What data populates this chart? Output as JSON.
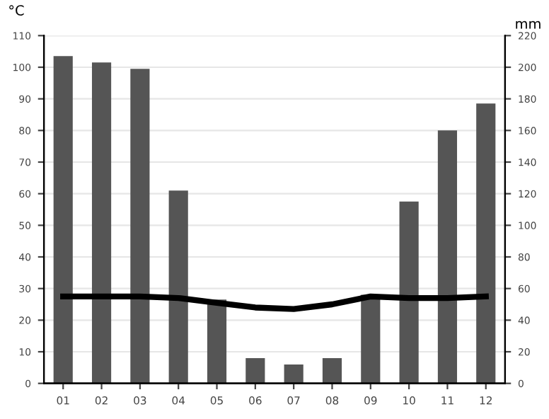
{
  "chart_data": {
    "type": "bar",
    "ylabel": "°C",
    "y2label": "mm",
    "categories": [
      "01",
      "02",
      "03",
      "04",
      "05",
      "06",
      "07",
      "08",
      "09",
      "10",
      "11",
      "12"
    ],
    "series": [
      {
        "axis": "y2",
        "color": "#555555",
        "values": [
          207,
          203,
          199,
          122,
          53,
          16,
          12,
          16,
          56,
          115,
          160,
          177
        ]
      },
      {
        "type": "line",
        "axis": "y",
        "color": "#000000",
        "values": [
          27.5,
          27.5,
          27.5,
          27,
          25.5,
          24,
          23.5,
          25,
          27.5,
          27,
          27,
          27.5
        ]
      }
    ],
    "ylim": [
      0,
      110
    ],
    "yticks": [
      0,
      10,
      20,
      30,
      40,
      50,
      60,
      70,
      80,
      90,
      100,
      110
    ],
    "y2lim": [
      0,
      220
    ],
    "y2ticks": [
      0,
      20,
      40,
      60,
      80,
      100,
      120,
      140,
      160,
      180,
      200,
      220
    ],
    "grid": "y",
    "marker": "none",
    "line_style": "solid"
  }
}
